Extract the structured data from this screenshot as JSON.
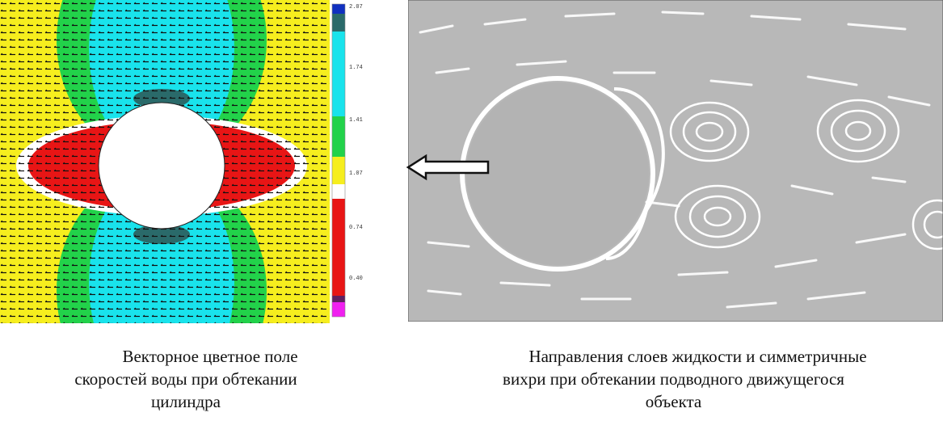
{
  "figures": [
    {
      "colorbar_labels": [
        "2.07",
        "1.74",
        "1.41",
        "1.07",
        "0.74",
        "0.40"
      ],
      "caption": [
        "Векторное цветное поле",
        "скоростей воды при обтекании",
        "цилиндра"
      ]
    },
    {
      "caption": [
        "Направления слоев жидкости и симметричные",
        "вихри при обтекании подводного движущегося",
        "объекта"
      ]
    }
  ]
}
